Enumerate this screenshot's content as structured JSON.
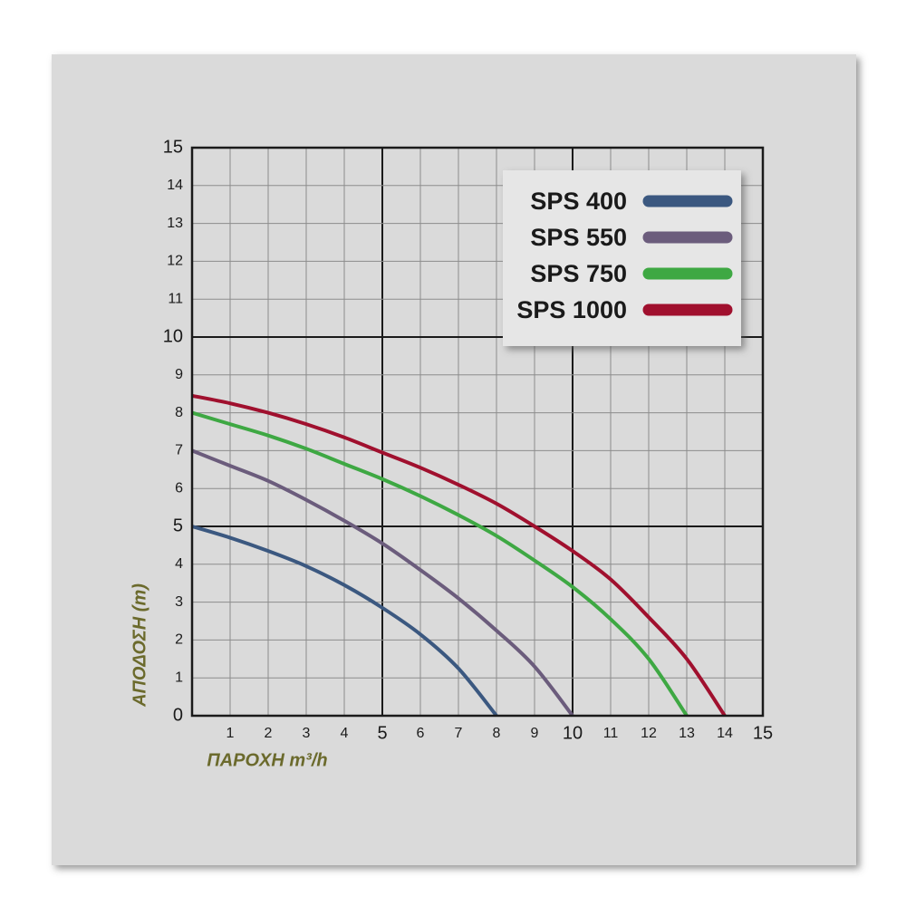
{
  "chart_data": {
    "type": "line",
    "x_label": "ΠΑΡΟΧΗ m³/h",
    "y_label": "ΑΠΟΔΟΣΗ (m)",
    "xlim": [
      0,
      15
    ],
    "xticks": [
      1,
      2,
      3,
      4,
      5,
      6,
      7,
      8,
      9,
      10,
      11,
      12,
      13,
      14,
      15
    ],
    "ylim": [
      0,
      15
    ],
    "yticks": [
      0,
      1,
      2,
      3,
      4,
      5,
      6,
      7,
      8,
      9,
      10,
      11,
      12,
      13,
      14,
      15
    ],
    "grid": true,
    "legend": "upper right",
    "series": [
      {
        "name": "SPS 400",
        "color": "#3b5880",
        "x": [
          0,
          1,
          2,
          3,
          4,
          5,
          6,
          7,
          8
        ],
        "values": [
          5,
          4.7,
          4.35,
          3.95,
          3.45,
          2.85,
          2.15,
          1.25,
          0
        ]
      },
      {
        "name": "SPS 550",
        "color": "#6b5c7c",
        "x": [
          0,
          1,
          2,
          3,
          4,
          5,
          6,
          7,
          8,
          9,
          10
        ],
        "values": [
          7,
          6.6,
          6.2,
          5.7,
          5.15,
          4.55,
          3.85,
          3.1,
          2.25,
          1.3,
          0
        ]
      },
      {
        "name": "SPS 750",
        "color": "#3ea843",
        "x": [
          0,
          1,
          2,
          3,
          4,
          5,
          6,
          7,
          8,
          9,
          10,
          11,
          12,
          13
        ],
        "values": [
          8,
          7.7,
          7.4,
          7.05,
          6.65,
          6.25,
          5.8,
          5.3,
          4.75,
          4.1,
          3.4,
          2.55,
          1.5,
          0
        ]
      },
      {
        "name": "SPS 1000",
        "color": "#a0102e",
        "x": [
          0,
          1,
          2,
          3,
          4,
          5,
          6,
          7,
          8,
          9,
          10,
          11,
          12,
          13,
          14
        ],
        "values": [
          8.45,
          8.25,
          8,
          7.7,
          7.35,
          6.95,
          6.55,
          6.1,
          5.6,
          5,
          4.35,
          3.6,
          2.6,
          1.5,
          0
        ]
      }
    ]
  }
}
